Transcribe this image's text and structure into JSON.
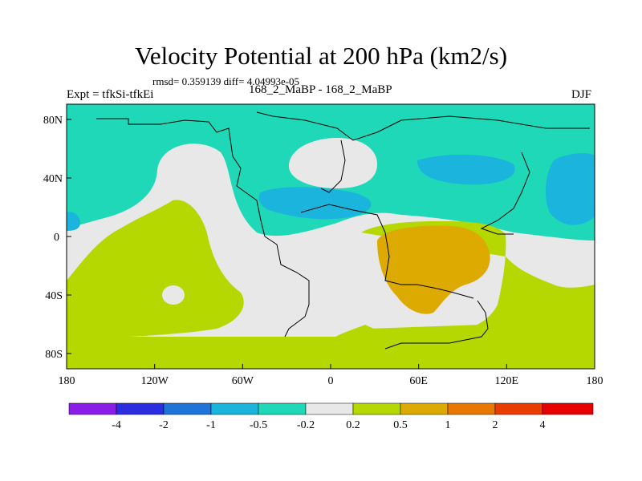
{
  "title": "Velocity Potential at 200 hPa (km2/s)",
  "stats_line": "rmsd= 0.359139 diff= 4.04993e-05",
  "experiment": "Expt = tfkSi-tfkEi",
  "center_label": "168_2_MaBP - 168_2_MaBP",
  "season": "DJF",
  "longitude_ticks": [
    "180",
    "120W",
    "60W",
    "0",
    "60E",
    "120E",
    "180"
  ],
  "latitude_ticks": [
    "80N",
    "40N",
    "0",
    "40S",
    "80S"
  ],
  "colorbar": {
    "labels": [
      "-4",
      "-2",
      "-1",
      "-0.5",
      "-0.2",
      "0.2",
      "0.5",
      "1",
      "2",
      "4"
    ],
    "colors": [
      "#8a1ee8",
      "#2a2ee0",
      "#1e74d8",
      "#1ab4dc",
      "#1ed8b8",
      "#e8e8e8",
      "#b4d800",
      "#dcaa00",
      "#e87800",
      "#e83c00",
      "#e80000"
    ]
  },
  "field_colors": {
    "teal": "#1ed8b8",
    "blue": "#1ab4dc",
    "white": "#e8e8e8",
    "green": "#b4d800",
    "orange": "#dcaa00"
  }
}
